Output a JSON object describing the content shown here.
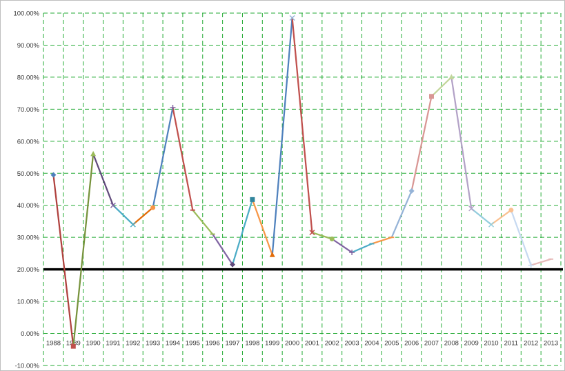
{
  "chart_data": {
    "type": "line",
    "title": "",
    "xlabel": "",
    "ylabel": "",
    "categories": [
      "1988",
      "1989",
      "1990",
      "1991",
      "1992",
      "1993",
      "1994",
      "1995",
      "1996",
      "1997",
      "1998",
      "1999",
      "2000",
      "2001",
      "2002",
      "2003",
      "2004",
      "2005",
      "2006",
      "2007",
      "2008",
      "2009",
      "2010",
      "2011",
      "2012",
      "2013"
    ],
    "values": [
      0.495,
      -0.04,
      0.56,
      0.4,
      0.34,
      0.393,
      0.705,
      0.385,
      0.31,
      0.215,
      0.418,
      0.245,
      0.985,
      0.315,
      0.295,
      0.253,
      0.28,
      0.3,
      0.445,
      0.74,
      0.8,
      0.39,
      0.34,
      0.385,
      0.213,
      0.232
    ],
    "segment_colors": [
      "#b0413e",
      "#77933c",
      "#604a7b",
      "#4bacc6",
      "#e36c09",
      "#4f81bd",
      "#c0504d",
      "#9bbb59",
      "#8064a2",
      "#4bacc6",
      "#f79646",
      "#4f81bd",
      "#c0504d",
      "#9bbb59",
      "#8064a2",
      "#4bacc6",
      "#f79646",
      "#95b3d7",
      "#d99694",
      "#c3d69b",
      "#b3a2c7",
      "#93cddd",
      "#fac090",
      "#c6d9f1",
      "#e6b9b8"
    ],
    "marker_colors": [
      "#4f81bd",
      "#c0504d",
      "#9bbb59",
      "#8064a2",
      "#4bacc6",
      "#f79646",
      "#8064a2",
      "#c0504d",
      "#9bbb59",
      "#604a7b",
      "#31859c",
      "#e36c09",
      "#95b3d7",
      "#c0504d",
      "#9bbb59",
      "#8064a2",
      "#4bacc6",
      "#f79646",
      "#95b3d7",
      "#d99694",
      "#c3d69b",
      "#b3a2c7",
      "#93cddd",
      "#fac090",
      "#c6d9f1",
      "#e6b9b8"
    ],
    "marker_shapes": [
      "diamond",
      "square",
      "triangle",
      "x",
      "x",
      "circle",
      "plus",
      "dash",
      "dash",
      "diamond",
      "square",
      "triangle",
      "x",
      "x",
      "circle",
      "plus",
      "dash",
      "dash",
      "diamond",
      "square",
      "triangle",
      "x",
      "x",
      "circle",
      "plus",
      "dash"
    ],
    "ylim": [
      -0.1,
      1.0
    ],
    "ytick_labels": [
      "100.00%",
      "90.00%",
      "80.00%",
      "70.00%",
      "60.00%",
      "50.00%",
      "40.00%",
      "30.00%",
      "20.00%",
      "10.00%",
      "0.00%",
      "-10.00%"
    ],
    "ytick_values": [
      1.0,
      0.9,
      0.8,
      0.7,
      0.6,
      0.5,
      0.4,
      0.3,
      0.2,
      0.1,
      0.0,
      -0.1
    ],
    "reference_line": {
      "value": 0.2,
      "color": "#000000"
    },
    "grid": true,
    "grid_color": "#22aa33",
    "legend": "none"
  }
}
